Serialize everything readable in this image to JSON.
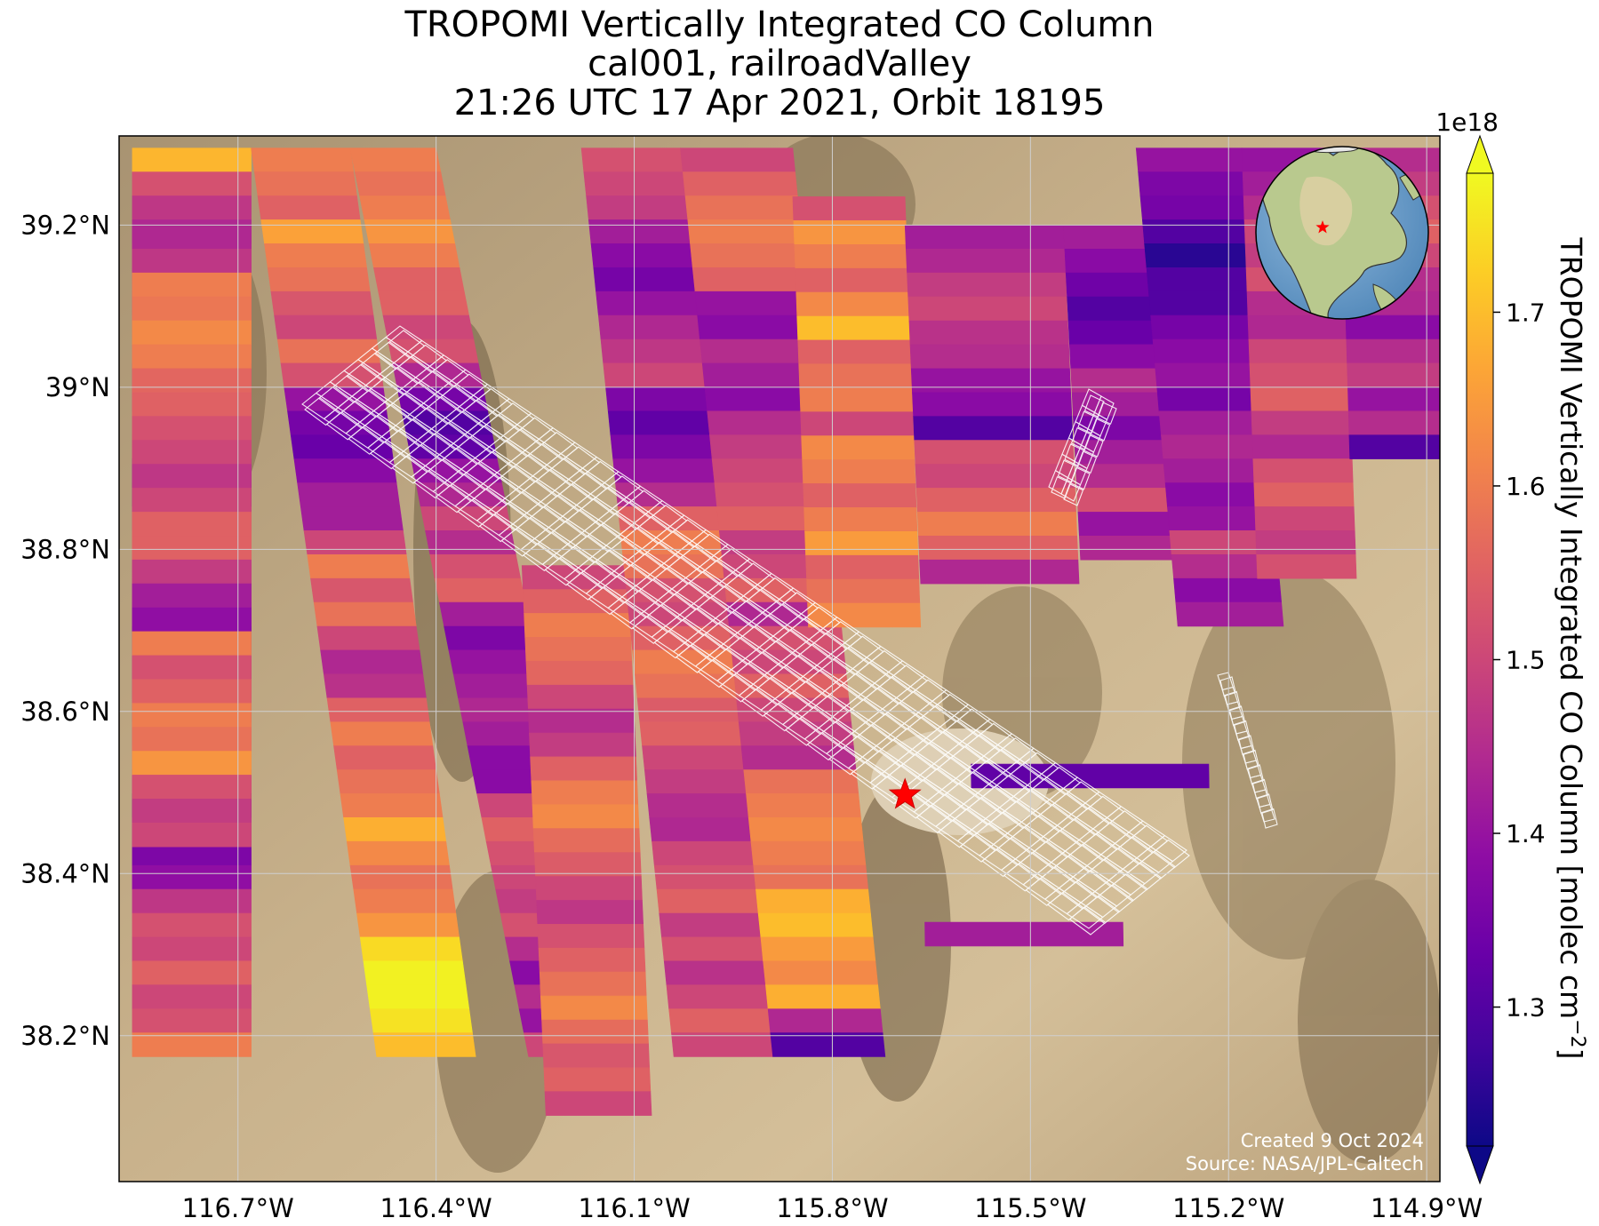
{
  "title": {
    "line1": "TROPOMI Vertically Integrated CO Column",
    "line2": "cal001, railroadValley",
    "line3": "21:26 UTC 17 Apr 2021, Orbit 18195"
  },
  "map": {
    "basemap": "satellite imagery (desert, mountain ranges)",
    "x_ticks": [
      "116.7°W",
      "116.4°W",
      "116.1°W",
      "115.8°W",
      "115.5°W",
      "115.2°W",
      "114.9°W"
    ],
    "y_ticks": [
      "39.2°N",
      "39°N",
      "38.8°N",
      "38.6°N",
      "38.4°N",
      "38.2°N"
    ],
    "grid": true,
    "target_marker": "red star",
    "credit": {
      "created": "Created 9 Oct 2024",
      "source": "Source: NASA/JPL-Caltech"
    }
  },
  "inset_globe": {
    "description": "orthographic globe centered on North America",
    "marker": "red star"
  },
  "colorbar": {
    "label": "TROPOMI Vertically Integrated CO Column [molec cm",
    "label_exp": "−2",
    "label_end": "]",
    "offset": "1e18",
    "ticks": [
      "1.3",
      "1.4",
      "1.5",
      "1.6",
      "1.7"
    ],
    "colormap": "plasma",
    "extend": "both"
  },
  "chart_data": {
    "type": "heatmap",
    "title": "TROPOMI Vertically Integrated CO Column",
    "subtitle": [
      "cal001, railroadValley",
      "21:26 UTC 17 Apr 2021, Orbit 18195"
    ],
    "xlabel": "",
    "ylabel": "",
    "xlim": [
      -116.88,
      -114.88
    ],
    "ylim": [
      38.02,
      39.31
    ],
    "x_tick_values": [
      -116.7,
      -116.4,
      -116.1,
      -115.8,
      -115.5,
      -115.2,
      -114.9
    ],
    "y_tick_values": [
      39.2,
      39.0,
      38.8,
      38.6,
      38.4,
      38.2
    ],
    "value_range": [
      1.22,
      1.78
    ],
    "value_unit": "1e18 molec cm^-2",
    "marker": {
      "lon": -115.69,
      "lat": 38.497,
      "symbol": "star"
    },
    "swaths": [
      {
        "lon0": -116.86,
        "lat0": 39.295,
        "lon1": -116.68,
        "lat1": 39.295,
        "dlon": 0.0,
        "values": [
          1.69,
          1.52,
          1.47,
          1.44,
          1.5,
          1.46,
          1.44,
          1.53,
          1.55,
          1.44,
          1.48,
          1.55,
          1.52,
          1.3,
          1.25,
          1.46,
          1.55,
          1.52,
          1.49,
          1.43,
          1.29,
          1.39,
          1.35,
          1.38,
          1.45,
          1.5,
          1.41,
          1.22,
          1.38,
          1.36,
          1.39,
          1.47,
          1.52,
          1.5,
          1.55,
          1.5,
          1.52,
          1.6
        ]
      },
      {
        "lon0": -116.86,
        "lat0": 39.2,
        "lon1": -116.68,
        "lat1": 39.2,
        "dlon": 0.0,
        "values": [
          1.44,
          1.47,
          1.6,
          1.59,
          1.62,
          1.6,
          1.56,
          1.55,
          1.52,
          1.5,
          1.47,
          1.5,
          1.55,
          1.55,
          1.48,
          1.42,
          1.39,
          1.6,
          1.52,
          1.55,
          1.6,
          1.58,
          1.64,
          1.52,
          1.48,
          1.5
        ]
      },
      {
        "lon0": -116.68,
        "lat0": 39.295,
        "lon1": -116.53,
        "lat1": 39.295,
        "dlon": 0.19,
        "values": [
          1.6,
          1.58,
          1.55,
          1.66,
          1.6,
          1.58,
          1.53,
          1.5,
          1.58,
          1.52,
          1.4,
          1.35,
          1.33,
          1.38,
          1.42,
          1.42,
          1.5,
          1.6,
          1.53,
          1.58,
          1.5,
          1.44,
          1.46,
          1.55,
          1.6,
          1.55,
          1.58,
          1.6,
          1.68,
          1.62,
          1.58,
          1.6,
          1.64,
          1.74,
          1.77,
          1.77,
          1.75,
          1.7
        ]
      },
      {
        "lon0": -116.53,
        "lat0": 39.295,
        "lon1": -116.4,
        "lat1": 39.295,
        "dlon": 0.27,
        "values": [
          1.6,
          1.58,
          1.6,
          1.64,
          1.6,
          1.55,
          1.55,
          1.5,
          1.52,
          1.44,
          1.35,
          1.3,
          1.32,
          1.4,
          1.44,
          1.5,
          1.45,
          1.52,
          1.55,
          1.42,
          1.36,
          1.4,
          1.42,
          1.44,
          1.42,
          1.38,
          1.38,
          1.5,
          1.55,
          1.52,
          1.5,
          1.48,
          1.52,
          1.45,
          1.38,
          1.45,
          1.4,
          1.5
        ]
      },
      {
        "lon0": -116.27,
        "lat0": 38.78,
        "lon1": -116.11,
        "lat1": 38.78,
        "dlon": 0.06,
        "values": [
          1.5,
          1.55,
          1.6,
          1.58,
          1.56,
          1.5,
          1.45,
          1.48,
          1.55,
          1.6,
          1.62,
          1.57,
          1.54,
          1.5,
          1.47,
          1.52,
          1.55,
          1.58,
          1.62,
          1.57,
          1.53,
          1.55,
          1.5
        ]
      },
      {
        "lon0": -116.18,
        "lat0": 39.295,
        "lon1": -116.03,
        "lat1": 39.295,
        "dlon": 0.14,
        "values": [
          1.52,
          1.5,
          1.48,
          1.42,
          1.38,
          1.35,
          1.4,
          1.44,
          1.47,
          1.5,
          1.36,
          1.32,
          1.36,
          1.4,
          1.45,
          1.55,
          1.6,
          1.58,
          1.52,
          1.5,
          1.55,
          1.6,
          1.58,
          1.54,
          1.55,
          1.5,
          1.48,
          1.45,
          1.44,
          1.5,
          1.52,
          1.55,
          1.48,
          1.52,
          1.46,
          1.5,
          1.55,
          1.5
        ]
      },
      {
        "lon0": -116.03,
        "lat0": 39.295,
        "lon1": -115.86,
        "lat1": 39.295,
        "dlon": 0.14,
        "values": [
          1.5,
          1.55,
          1.58,
          1.6,
          1.58,
          1.55,
          1.4,
          1.38,
          1.45,
          1.42,
          1.38,
          1.45,
          1.48,
          1.5,
          1.52,
          1.55,
          1.48,
          1.5,
          1.55,
          1.44,
          1.52,
          1.5,
          1.55,
          1.5,
          1.48,
          1.45,
          1.58,
          1.6,
          1.62,
          1.6,
          1.58,
          1.68,
          1.7,
          1.65,
          1.62,
          1.68,
          1.44,
          1.3
        ]
      },
      {
        "lon0": -115.86,
        "lat0": 39.235,
        "lon1": -115.69,
        "lat1": 39.235,
        "dlon": 0.05,
        "values": [
          1.52,
          1.64,
          1.6,
          1.55,
          1.62,
          1.7,
          1.55,
          1.58,
          1.6,
          1.5,
          1.62,
          1.6,
          1.55,
          1.6,
          1.65,
          1.55,
          1.58,
          1.62
        ]
      },
      {
        "lon0": -115.69,
        "lat0": 39.2,
        "lon1": -115.45,
        "lat1": 39.2,
        "dlon": 0.06,
        "values": [
          1.42,
          1.44,
          1.48,
          1.5,
          1.46,
          1.45,
          1.4,
          1.38,
          1.3,
          1.52,
          1.5,
          1.55,
          1.6,
          1.55,
          1.44
        ]
      },
      {
        "lon0": -115.59,
        "lat0": 38.535,
        "lon1": -115.23,
        "lat1": 38.535,
        "dlon": 0.02,
        "values": [
          1.32
        ]
      },
      {
        "lon0": -115.66,
        "lat0": 38.34,
        "lon1": -115.36,
        "lat1": 38.34,
        "dlon": 0.02,
        "values": [
          1.42
        ]
      },
      {
        "lon0": -115.45,
        "lat0": 39.2,
        "lon1": -115.28,
        "lat1": 39.2,
        "dlon": 0.07,
        "values": [
          1.42,
          1.38,
          1.34,
          1.3,
          1.33,
          1.38,
          1.45,
          1.42,
          1.36,
          1.42,
          1.45,
          1.52,
          1.4,
          1.44
        ]
      },
      {
        "lon0": -115.34,
        "lat0": 39.295,
        "lon1": -115.18,
        "lat1": 39.295,
        "dlon": 0.12,
        "values": [
          1.4,
          1.36,
          1.35,
          1.3,
          1.25,
          1.3,
          1.3,
          1.35,
          1.38,
          1.4,
          1.35,
          1.42,
          1.44,
          1.42,
          1.38,
          1.4,
          1.5,
          1.45,
          1.38,
          1.42
        ]
      },
      {
        "lon0": -115.18,
        "lat0": 39.295,
        "lon1": -115.03,
        "lat1": 39.295,
        "dlon": 0.05,
        "values": [
          1.4,
          1.42,
          1.45,
          1.5,
          1.48,
          1.52,
          1.45,
          1.44,
          1.5,
          1.52,
          1.55,
          1.48,
          1.44,
          1.52,
          1.55,
          1.5,
          1.48,
          1.52
        ]
      },
      {
        "lon0": -115.03,
        "lat0": 39.295,
        "lon1": -114.88,
        "lat1": 39.295,
        "dlon": 0.04,
        "values": [
          1.45,
          1.48,
          1.52,
          1.55,
          1.5,
          1.45,
          1.44,
          1.38,
          1.45,
          1.48,
          1.4,
          1.45,
          1.3
        ]
      }
    ],
    "footprint_clusters": [
      {
        "name": "main",
        "rows": 36,
        "cols": 7
      },
      {
        "name": "small-north",
        "rows": 6,
        "cols": 2
      },
      {
        "name": "small-east",
        "rows": 10,
        "cols": 1
      }
    ]
  }
}
